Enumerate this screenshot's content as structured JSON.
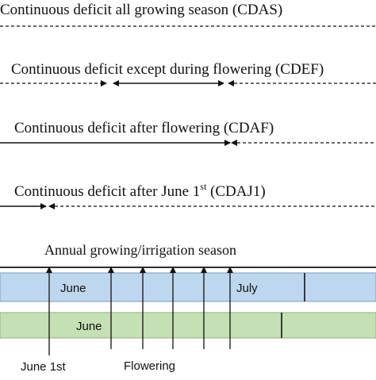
{
  "scenarios": [
    {
      "label": "Continuous deficit all growing season (CDAS)"
    },
    {
      "label": "Continuous deficit except during flowering (CDEF)"
    },
    {
      "label": "Continuous deficit after flowering (CDAF)"
    },
    {
      "label_main": "Continuous deficit after June 1",
      "label_sup": "st",
      "label_tail": " (CDAJ1)"
    }
  ],
  "season": {
    "title": "Annual growing/irrigation season",
    "bar1": {
      "month1": "June",
      "month2": "July",
      "color": "#bdd7ee",
      "border": "#7a9cc0"
    },
    "bar2": {
      "month1": "June",
      "color": "#c5e0b4",
      "border": "#8fb07a"
    }
  },
  "markers": {
    "june1": "June 1st",
    "flowering": "Flowering"
  }
}
